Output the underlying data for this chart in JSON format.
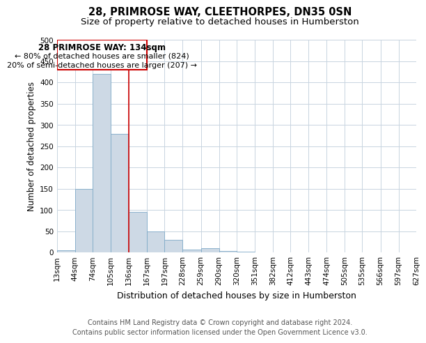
{
  "title": "28, PRIMROSE WAY, CLEETHORPES, DN35 0SN",
  "subtitle": "Size of property relative to detached houses in Humberston",
  "xlabel": "Distribution of detached houses by size in Humberston",
  "ylabel": "Number of detached properties",
  "footer_line1": "Contains HM Land Registry data © Crown copyright and database right 2024.",
  "footer_line2": "Contains public sector information licensed under the Open Government Licence v3.0.",
  "bar_color": "#cdd9e5",
  "bar_edge_color": "#7faac8",
  "vline_x": 136,
  "vline_color": "#cc0000",
  "annotation_title": "28 PRIMROSE WAY: 134sqm",
  "annotation_line1": "← 80% of detached houses are smaller (824)",
  "annotation_line2": "20% of semi-detached houses are larger (207) →",
  "annotation_box_color": "#cc0000",
  "bin_edges": [
    13,
    44,
    74,
    105,
    136,
    167,
    197,
    228,
    259,
    290,
    320,
    351,
    382,
    412,
    443,
    474,
    505,
    535,
    566,
    597,
    627
  ],
  "bin_labels": [
    "13sqm",
    "44sqm",
    "74sqm",
    "105sqm",
    "136sqm",
    "167sqm",
    "197sqm",
    "228sqm",
    "259sqm",
    "290sqm",
    "320sqm",
    "351sqm",
    "382sqm",
    "412sqm",
    "443sqm",
    "474sqm",
    "505sqm",
    "535sqm",
    "566sqm",
    "597sqm",
    "627sqm"
  ],
  "heights": [
    5,
    150,
    420,
    278,
    95,
    49,
    29,
    6,
    10,
    3,
    2,
    0,
    0,
    0,
    0,
    0,
    0,
    0,
    0,
    0
  ],
  "ylim": [
    0,
    500
  ],
  "yticks": [
    0,
    50,
    100,
    150,
    200,
    250,
    300,
    350,
    400,
    450,
    500
  ],
  "background_color": "#ffffff",
  "grid_color": "#c8d4e0",
  "title_fontsize": 10.5,
  "subtitle_fontsize": 9.5,
  "xlabel_fontsize": 9,
  "ylabel_fontsize": 8.5,
  "tick_fontsize": 7.5,
  "footer_fontsize": 7,
  "annot_title_fontsize": 8.5,
  "annot_body_fontsize": 8
}
